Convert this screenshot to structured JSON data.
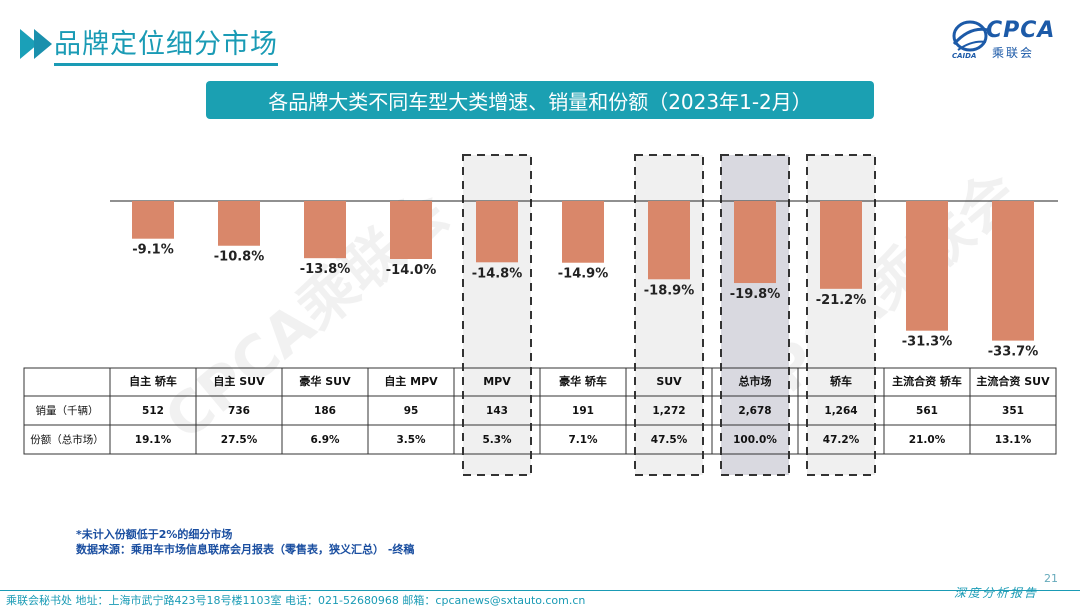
{
  "page": {
    "heading": "品牌定位细分市场",
    "banner_title": "各品牌大类不同车型大类增速、销量和份额（2023年1-2月）",
    "logo_text": "CPCA",
    "logo_sub": "乘联会",
    "logo_small": "CAIDA",
    "footnote_1": "*未计入份额低于2%的细分市场",
    "footnote_2": "数据来源：乘用车市场信息联席会月报表（零售表，狭义汇总） -终稿",
    "page_number": "21",
    "footer_text": "乘联会秘书处   地址：上海市武宁路423号18号楼1103室   电话：021-52680968   邮箱：cpcanews@sxtauto.com.cn",
    "footer_right": "深度分析报告",
    "watermark": "CPCA乘联会"
  },
  "colors": {
    "bar": "#d9876a",
    "accent": "#1aa0b5",
    "highlight_fill": "#f0f0f0",
    "highlight_fill_total": "#d9d9e0"
  },
  "chart_data": {
    "type": "bar",
    "categories": [
      "自主 轿车",
      "自主 SUV",
      "豪华 SUV",
      "自主 MPV",
      "MPV",
      "豪华 轿车",
      "SUV",
      "总市场",
      "轿车",
      "主流合资 轿车",
      "主流合资 SUV"
    ],
    "values": [
      -9.1,
      -10.8,
      -13.8,
      -14.0,
      -14.8,
      -14.9,
      -18.9,
      -19.8,
      -21.2,
      -31.3,
      -33.7
    ],
    "value_labels": [
      "-9.1%",
      "-10.8%",
      "-13.8%",
      "-14.0%",
      "-14.8%",
      "-14.9%",
      "-18.9%",
      "-19.8%",
      "-21.2%",
      "-31.3%",
      "-33.7%"
    ],
    "highlighted": [
      "MPV",
      "SUV",
      "总市场",
      "轿车"
    ],
    "ylim": [
      -35,
      0
    ],
    "grid": false,
    "table": {
      "rows": [
        {
          "label": "销量（千辆）",
          "values": [
            "512",
            "736",
            "186",
            "95",
            "143",
            "191",
            "1,272",
            "2,678",
            "1,264",
            "561",
            "351"
          ]
        },
        {
          "label": "份额（总市场）",
          "values": [
            "19.1%",
            "27.5%",
            "6.9%",
            "3.5%",
            "5.3%",
            "7.1%",
            "47.5%",
            "100.0%",
            "47.2%",
            "21.0%",
            "13.1%"
          ]
        }
      ]
    }
  }
}
